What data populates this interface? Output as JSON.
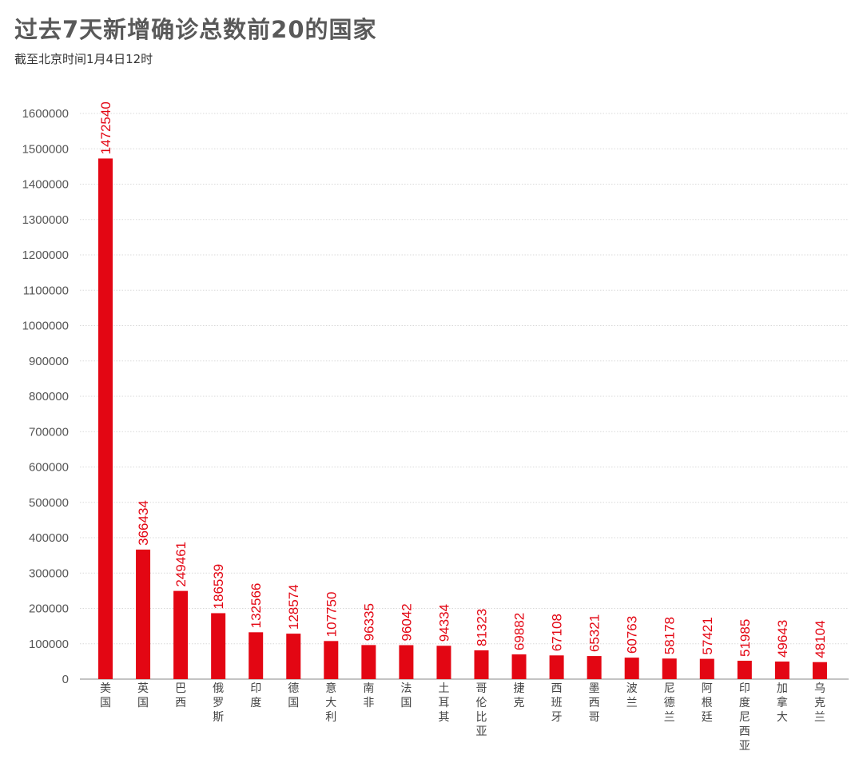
{
  "title": "过去7天新增确诊总数前20的国家",
  "subtitle": "截至北京时间1月4日12时",
  "colors": {
    "bar": "#e30613",
    "grid": "#d9d9d9",
    "axis": "#888888"
  },
  "chart_data": {
    "type": "bar",
    "title": "过去7天新增确诊总数前20的国家",
    "subtitle": "截至北京时间1月4日12时",
    "categories": [
      "美国",
      "英国",
      "巴西",
      "俄罗斯",
      "印度",
      "德国",
      "意大利",
      "南非",
      "法国",
      "土耳其",
      "哥伦比亚",
      "捷克",
      "西班牙",
      "墨西哥",
      "波兰",
      "尼德兰",
      "阿根廷",
      "印度尼西亚",
      "加拿大",
      "乌克兰"
    ],
    "values": [
      1472540,
      366434,
      249461,
      186539,
      132566,
      128574,
      107750,
      96335,
      96042,
      94334,
      81323,
      69882,
      67108,
      65321,
      60763,
      58178,
      57421,
      51985,
      49643,
      48104
    ],
    "data_labels": [
      "1472540",
      "366434",
      "249461",
      "186539",
      "132566",
      "128574",
      "107750",
      "96335",
      "96042",
      "94334",
      "81323",
      "69882",
      "67108",
      "65321",
      "60763",
      "58178",
      "57421",
      "51985",
      "49643",
      "48104"
    ],
    "yticks": [
      "0",
      "100000",
      "200000",
      "300000",
      "400000",
      "500000",
      "600000",
      "700000",
      "800000",
      "900000",
      "1000000",
      "1100000",
      "1200000",
      "1300000",
      "1400000",
      "1500000",
      "1600000"
    ],
    "ylim": [
      0,
      1600000
    ],
    "xlabel": "",
    "ylabel": "",
    "grid": true,
    "legend": "none"
  }
}
